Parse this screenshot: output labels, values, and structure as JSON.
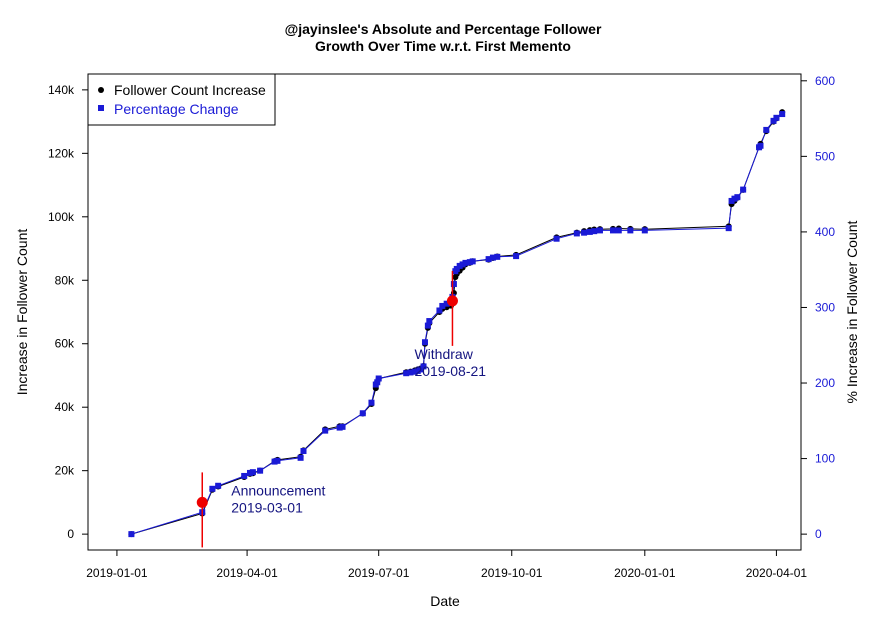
{
  "chart_data": {
    "type": "line",
    "title": "@jayinslee's Absolute and Percentage Follower\nGrowth Over Time w.r.t. First Memento",
    "xlabel": "Date",
    "ylabel": "Increase in Follower Count",
    "ylabel_right": "% Increase in Follower Count",
    "xlim": [
      "2018-12-12",
      "2020-04-18"
    ],
    "ylim": [
      -5000,
      145000
    ],
    "ylim_right": [
      -21,
      609
    ],
    "x_ticks": [
      "2019-01-01",
      "2019-04-01",
      "2019-07-01",
      "2019-10-01",
      "2020-01-01",
      "2020-04-01"
    ],
    "y_ticks": [
      0,
      20000,
      40000,
      60000,
      80000,
      100000,
      120000,
      140000
    ],
    "y_tick_labels": [
      "0",
      "20k",
      "40k",
      "60k",
      "80k",
      "100k",
      "120k",
      "140k"
    ],
    "y_ticks_right": [
      0,
      100,
      200,
      300,
      400,
      500,
      600
    ],
    "legend": {
      "position": "top-left",
      "entries": [
        "Follower Count Increase",
        "Percentage Change"
      ]
    },
    "colors": {
      "count": "#000000",
      "percent": "#1a1ad6",
      "event": "#ee0000",
      "annotation": "#141480",
      "right_axis": "#1a1ad6"
    },
    "x_dates": [
      "2019-01-11",
      "2019-03-01",
      "2019-03-08",
      "2019-03-12",
      "2019-03-30",
      "2019-04-03",
      "2019-04-05",
      "2019-04-10",
      "2019-04-20",
      "2019-04-22",
      "2019-05-08",
      "2019-05-10",
      "2019-05-25",
      "2019-06-04",
      "2019-06-06",
      "2019-06-20",
      "2019-06-26",
      "2019-06-29",
      "2019-06-30",
      "2019-07-01",
      "2019-07-20",
      "2019-07-23",
      "2019-07-26",
      "2019-07-28",
      "2019-07-30",
      "2019-08-01",
      "2019-08-02",
      "2019-08-04",
      "2019-08-05",
      "2019-08-12",
      "2019-08-14",
      "2019-08-17",
      "2019-08-20",
      "2019-08-21",
      "2019-08-22",
      "2019-08-23",
      "2019-08-24",
      "2019-08-26",
      "2019-08-28",
      "2019-08-30",
      "2019-09-02",
      "2019-09-04",
      "2019-09-15",
      "2019-09-18",
      "2019-09-21",
      "2019-10-04",
      "2019-11-01",
      "2019-11-15",
      "2019-11-20",
      "2019-11-24",
      "2019-11-27",
      "2019-12-01",
      "2019-12-10",
      "2019-12-14",
      "2019-12-22",
      "2020-01-01",
      "2020-02-28",
      "2020-03-01",
      "2020-03-03",
      "2020-03-05",
      "2020-03-09",
      "2020-03-20",
      "2020-03-21",
      "2020-03-25",
      "2020-03-30",
      "2020-04-01",
      "2020-04-05"
    ],
    "series": [
      {
        "name": "Follower Count Increase",
        "axis": "left",
        "values": [
          0,
          6500,
          14000,
          15000,
          18000,
          19000,
          19200,
          20000,
          23000,
          23400,
          24400,
          26400,
          33000,
          34000,
          34000,
          38000,
          41000,
          46000,
          48000,
          49000,
          51000,
          51200,
          51600,
          51900,
          52200,
          53000,
          60000,
          65000,
          66500,
          70000,
          71000,
          71500,
          72000,
          73500,
          76000,
          81000,
          82000,
          83000,
          84000,
          85000,
          85500,
          86000,
          86500,
          87000,
          87500,
          88000,
          93500,
          95000,
          95500,
          95800,
          96000,
          96100,
          96200,
          96300,
          96200,
          96100,
          97000,
          104000,
          105000,
          106000,
          108500,
          122000,
          123000,
          127000,
          130000,
          131000,
          133000
        ]
      },
      {
        "name": "Percentage Change",
        "axis": "right",
        "values": [
          0,
          29,
          60,
          64,
          77,
          81,
          82,
          84,
          96,
          97,
          101,
          110,
          137,
          141,
          142,
          160,
          174,
          198,
          201,
          206,
          213,
          214,
          215,
          216,
          218,
          222,
          254,
          276,
          282,
          296,
          302,
          305,
          306,
          314,
          331,
          348,
          351,
          355,
          357,
          359,
          360,
          361,
          364,
          366,
          367,
          368,
          391,
          398,
          399,
          400,
          401,
          402,
          402,
          402,
          402,
          402,
          405,
          441,
          444,
          446,
          456,
          512,
          514,
          535,
          547,
          551,
          556
        ]
      }
    ],
    "events": [
      {
        "date": "2019-03-01",
        "y": 10000,
        "label_lines": [
          "Announcement",
          "2019-03-01"
        ]
      },
      {
        "date": "2019-08-21",
        "y": 73500,
        "label_lines": [
          "Withdraw",
          "2019-08-21"
        ]
      }
    ]
  }
}
